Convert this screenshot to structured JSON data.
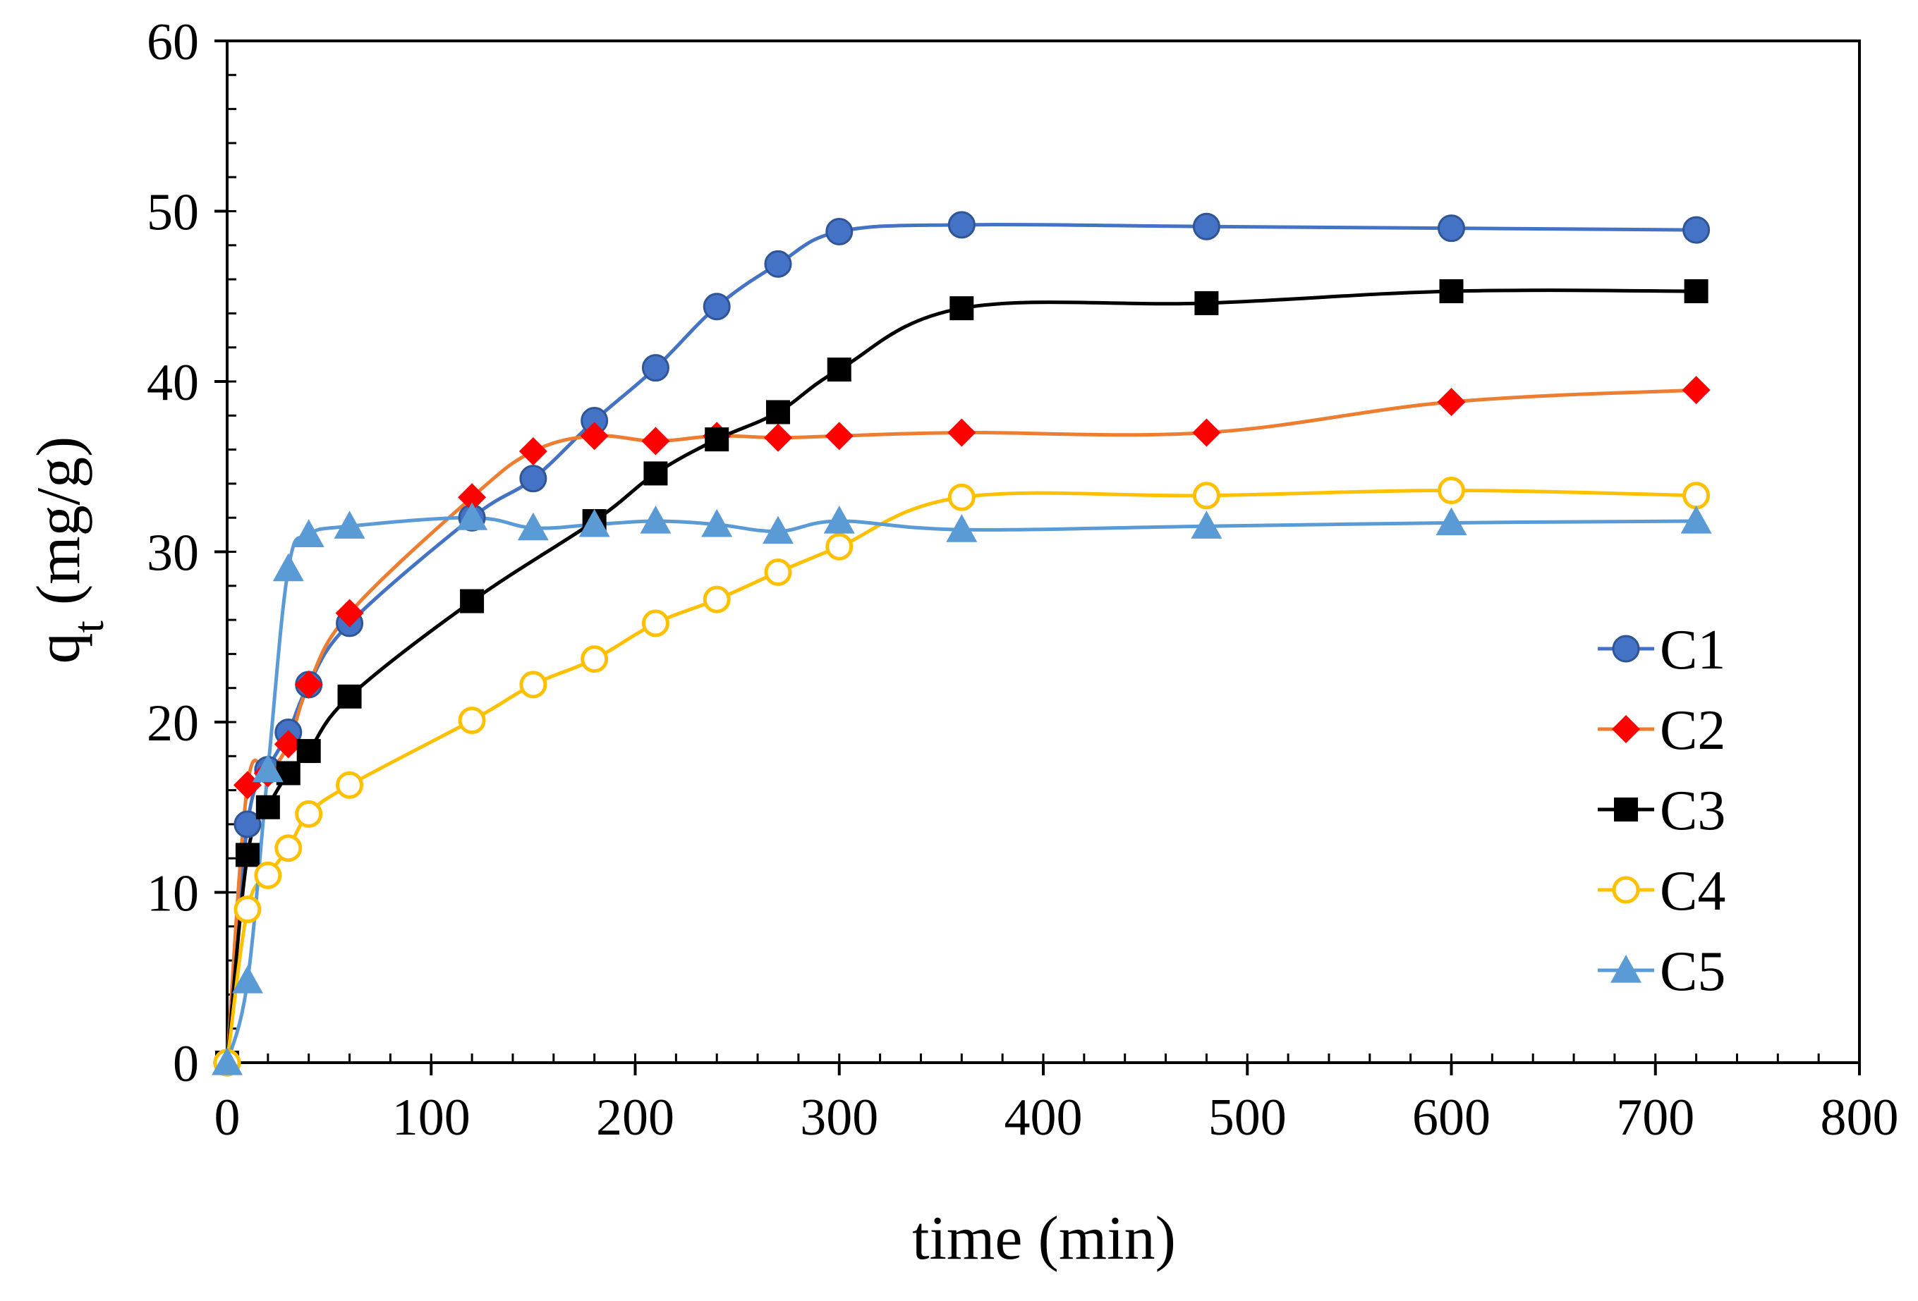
{
  "chart_data": {
    "type": "line",
    "title": "",
    "xlabel": "time (min)",
    "ylabel": "q",
    "ylabel_subscript": "t",
    "ylabel_units": "(mg/g)",
    "xlim": [
      0,
      800
    ],
    "ylim": [
      0,
      60
    ],
    "x_ticks": [
      0,
      100,
      200,
      300,
      400,
      500,
      600,
      700,
      800
    ],
    "y_ticks": [
      0,
      10,
      20,
      30,
      40,
      50,
      60
    ],
    "x_ticks_label": [
      "0",
      "100",
      "200",
      "300",
      "400",
      "500",
      "600",
      "700",
      "800"
    ],
    "y_ticks_label": [
      "0",
      "10",
      "20",
      "30",
      "40",
      "50",
      "60"
    ],
    "grid": false,
    "legend_position": "right",
    "series": [
      {
        "name": "C1",
        "color": "#4472C4",
        "marker": "circle-filled",
        "x": [
          0,
          10,
          20,
          30,
          40,
          60,
          120,
          150,
          180,
          210,
          240,
          270,
          300,
          360,
          480,
          600,
          720
        ],
        "y": [
          0,
          14.0,
          17.2,
          19.4,
          22.2,
          25.8,
          32.0,
          34.3,
          37.7,
          40.8,
          44.4,
          46.9,
          48.8,
          49.2,
          49.1,
          49.0,
          48.9
        ]
      },
      {
        "name": "C2",
        "color": "#ED7D31",
        "marker_color": "#FF0000",
        "marker": "diamond-filled",
        "x": [
          0,
          10,
          20,
          30,
          40,
          60,
          120,
          150,
          180,
          210,
          240,
          270,
          300,
          360,
          480,
          600,
          720
        ],
        "y": [
          0,
          16.3,
          17.0,
          18.7,
          22.2,
          26.4,
          33.2,
          35.9,
          36.8,
          36.5,
          36.8,
          36.7,
          36.8,
          37.0,
          37.0,
          38.8,
          39.5
        ]
      },
      {
        "name": "C3",
        "color": "#000000",
        "marker": "square-filled",
        "x": [
          0,
          10,
          20,
          30,
          40,
          60,
          120,
          180,
          210,
          240,
          270,
          300,
          360,
          480,
          600,
          720
        ],
        "y": [
          0,
          12.2,
          15.0,
          17.0,
          18.3,
          21.5,
          27.1,
          31.8,
          34.6,
          36.6,
          38.2,
          40.7,
          44.3,
          44.6,
          45.3,
          45.3
        ]
      },
      {
        "name": "C4",
        "color": "#FFC000",
        "marker": "circle-open",
        "x": [
          0,
          10,
          20,
          30,
          40,
          60,
          120,
          150,
          180,
          210,
          240,
          270,
          300,
          360,
          480,
          600,
          720
        ],
        "y": [
          0,
          9.0,
          11.0,
          12.6,
          14.6,
          16.3,
          20.1,
          22.2,
          23.7,
          25.8,
          27.2,
          28.8,
          30.3,
          33.2,
          33.3,
          33.6,
          33.3
        ]
      },
      {
        "name": "C5",
        "color": "#5B9BD5",
        "marker": "triangle-filled",
        "x": [
          0,
          10,
          20,
          30,
          40,
          60,
          120,
          150,
          180,
          210,
          240,
          270,
          300,
          360,
          480,
          600,
          720
        ],
        "y": [
          0,
          4.8,
          17.2,
          29.0,
          31.0,
          31.5,
          32.0,
          31.4,
          31.6,
          31.8,
          31.6,
          31.2,
          31.8,
          31.3,
          31.5,
          31.7,
          31.8
        ]
      }
    ]
  }
}
